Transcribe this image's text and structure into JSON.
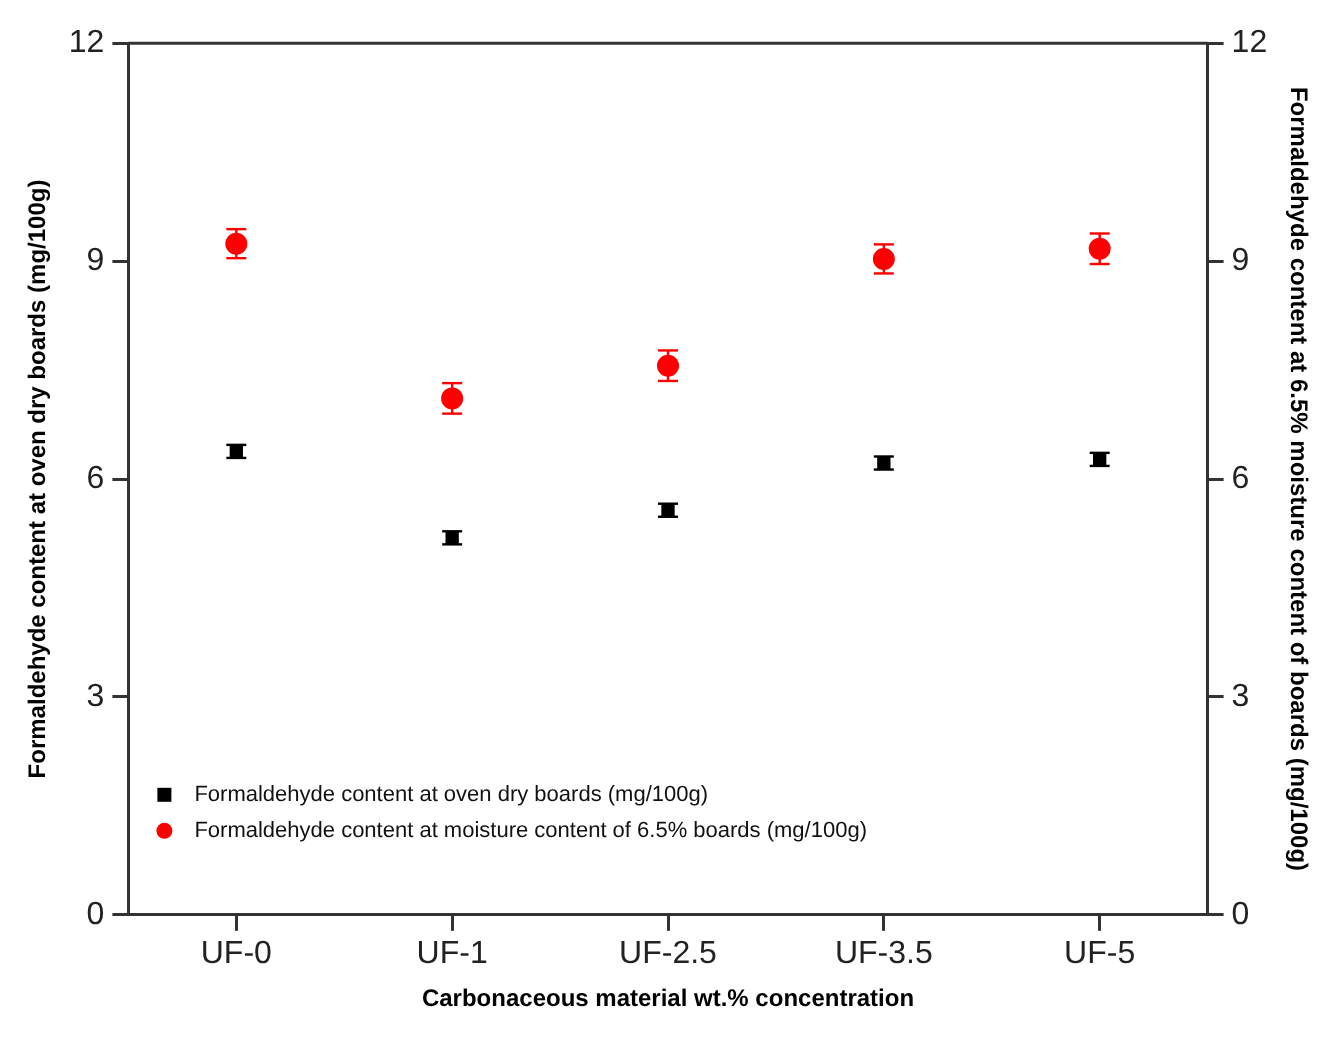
{
  "chart_data": {
    "type": "scatter",
    "xlabel": "Carbonaceous material wt.% concentration",
    "ylabel": "Formaldehyde content at oven dry boards (mg/100g)",
    "y2label": "Formaldehyde content at 6.5% moisture content of boards (mg/100g)",
    "categories": [
      "UF-0",
      "UF-1",
      "UF-2.5",
      "UF-3.5",
      "UF-5"
    ],
    "series": [
      {
        "name": "Formaldehyde content at oven dry boards (mg/100g)",
        "color": "#000000",
        "marker": "square",
        "values": [
          6.38,
          5.19,
          5.57,
          6.22,
          6.27
        ],
        "errors": [
          0.09,
          0.09,
          0.09,
          0.09,
          0.09
        ]
      },
      {
        "name": "Formaldehyde content at moisture content of 6.5% boards (mg/100g)",
        "color": "#ff0000",
        "marker": "circle",
        "axis": "y2",
        "values": [
          9.24,
          7.11,
          7.56,
          9.03,
          9.17
        ],
        "errors": [
          0.2,
          0.21,
          0.21,
          0.2,
          0.21
        ]
      }
    ],
    "ylim": [
      0,
      12
    ],
    "yticks": [
      0,
      3,
      6,
      9,
      12
    ],
    "y2lim": [
      0,
      12
    ],
    "y2ticks": [
      0,
      3,
      6,
      9,
      12
    ],
    "grid": false,
    "legend": "bottom left"
  }
}
